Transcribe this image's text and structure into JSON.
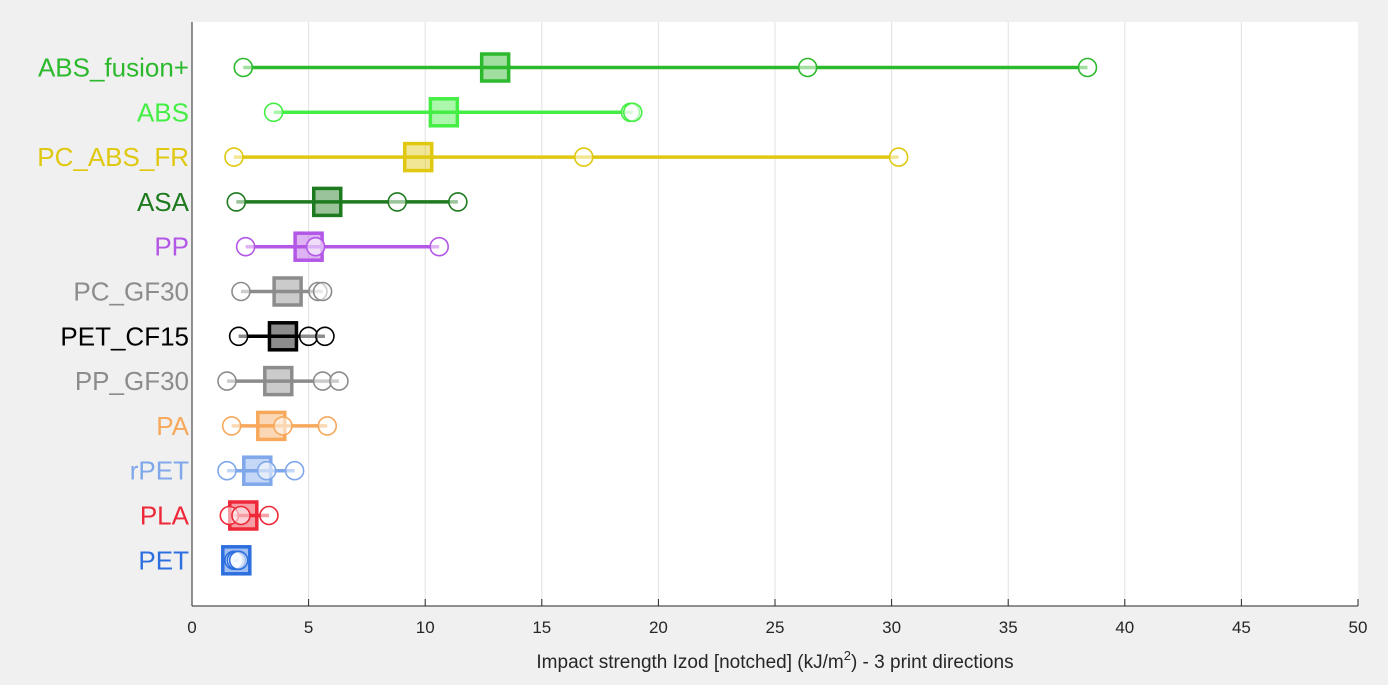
{
  "chart_data": {
    "type": "scatter",
    "title": "",
    "xlabel_main": "Impact strength Izod [notched] (kJ/m",
    "xlabel_sup": "2",
    "xlabel_tail": ") - 3 print directions",
    "xlim": [
      0,
      50
    ],
    "xticks": [
      "0",
      "5",
      "10",
      "15",
      "20",
      "25",
      "30",
      "35",
      "40",
      "45",
      "50"
    ],
    "grid": "vertical",
    "series": [
      {
        "label": "ABS_fusion+",
        "color": "#2db92d",
        "mean": 13.0,
        "points": [
          2.2,
          26.4,
          38.4
        ]
      },
      {
        "label": "ABS",
        "color": "#44ee44",
        "mean": 10.8,
        "points": [
          3.5,
          18.8,
          18.9
        ]
      },
      {
        "label": "PC_ABS_FR",
        "color": "#e0c810",
        "mean": 9.7,
        "points": [
          1.8,
          16.8,
          30.3
        ]
      },
      {
        "label": "ASA",
        "color": "#1e7a1e",
        "mean": 5.8,
        "points": [
          1.9,
          8.8,
          11.4
        ]
      },
      {
        "label": "PP",
        "color": "#b357e6",
        "mean": 5.0,
        "points": [
          2.3,
          5.3,
          10.6
        ]
      },
      {
        "label": "PC_GF30",
        "color": "#8c8c8c",
        "mean": 4.1,
        "points": [
          2.1,
          5.4,
          5.6
        ]
      },
      {
        "label": "PET_CF15",
        "color": "#000000",
        "mean": 3.9,
        "points": [
          2.0,
          5.0,
          5.7
        ]
      },
      {
        "label": "PP_GF30",
        "color": "#8c8c8c",
        "mean": 3.7,
        "points": [
          1.5,
          5.6,
          6.3
        ]
      },
      {
        "label": "PA",
        "color": "#f7a85a",
        "mean": 3.4,
        "points": [
          1.7,
          3.9,
          5.8
        ]
      },
      {
        "label": "rPET",
        "color": "#7fa7ea",
        "mean": 2.8,
        "points": [
          1.5,
          3.2,
          4.4
        ]
      },
      {
        "label": "PLA",
        "color": "#ee2838",
        "mean": 2.2,
        "points": [
          1.6,
          2.1,
          3.3
        ]
      },
      {
        "label": "PET",
        "color": "#2e6fe0",
        "mean": 1.9,
        "points": [
          1.8,
          1.9,
          2.0
        ]
      }
    ]
  }
}
